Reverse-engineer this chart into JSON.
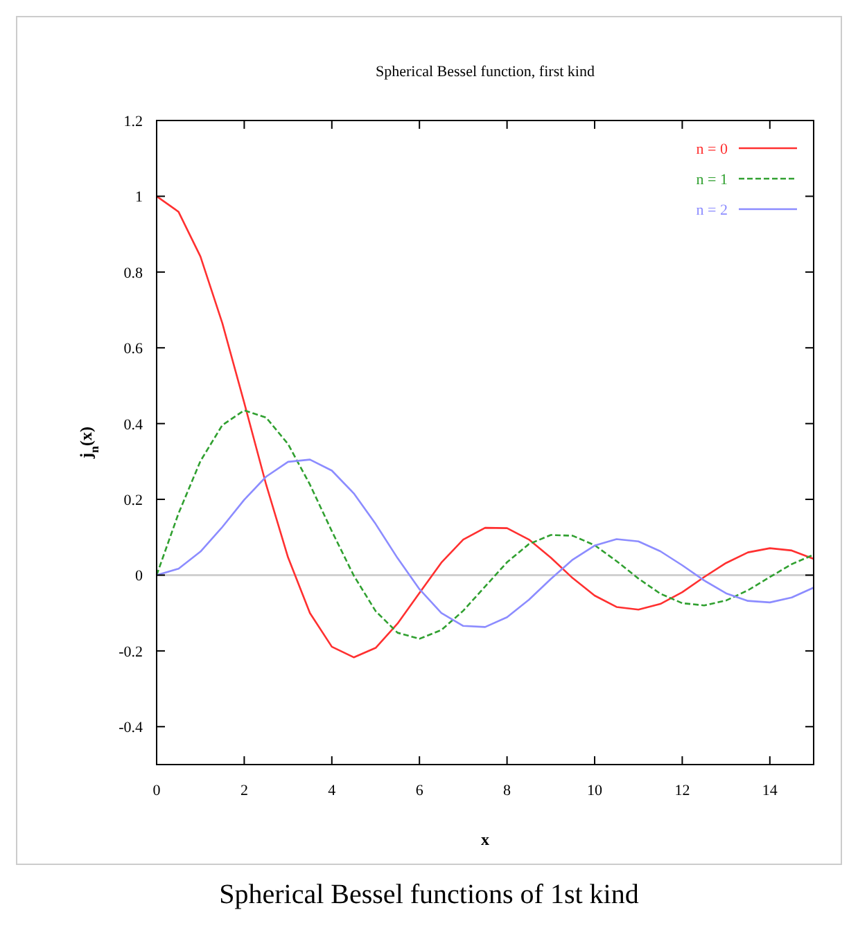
{
  "chart_data": {
    "type": "line",
    "title": "Spherical Bessel function, first kind",
    "xlabel": "x",
    "ylabel": "j$_{n}$(x)",
    "x": [
      0,
      0.5,
      1,
      1.5,
      2,
      2.5,
      3,
      3.5,
      4,
      4.5,
      5,
      5.5,
      6,
      6.5,
      7,
      7.5,
      8,
      8.5,
      9,
      9.5,
      10,
      10.5,
      11,
      11.5,
      12,
      12.5,
      13,
      13.5,
      14,
      14.5,
      15
    ],
    "series": [
      {
        "name": "n = 0",
        "color": "#ff3030",
        "line_style": "solid",
        "values": [
          1,
          0.959,
          0.841,
          0.665,
          0.455,
          0.239,
          0.047,
          -0.1,
          -0.189,
          -0.217,
          -0.192,
          -0.128,
          -0.047,
          0.033,
          0.094,
          0.125,
          0.124,
          0.094,
          0.046,
          -0.008,
          -0.054,
          -0.084,
          -0.091,
          -0.076,
          -0.045,
          -0.005,
          0.032,
          0.06,
          0.071,
          0.065,
          0.043
        ]
      },
      {
        "name": "n = 1",
        "color": "#30a030",
        "line_style": "dashed",
        "values": [
          0,
          0.163,
          0.301,
          0.396,
          0.435,
          0.416,
          0.346,
          0.239,
          0.116,
          -0.001,
          -0.095,
          -0.152,
          -0.168,
          -0.145,
          -0.094,
          -0.03,
          0.034,
          0.082,
          0.106,
          0.104,
          0.079,
          0.037,
          -0.009,
          -0.049,
          -0.074,
          -0.08,
          -0.067,
          -0.04,
          -0.005,
          0.029,
          0.054
        ]
      },
      {
        "name": "n = 2",
        "color": "#8c8cff",
        "line_style": "solid",
        "values": [
          0,
          0.017,
          0.062,
          0.127,
          0.199,
          0.26,
          0.299,
          0.305,
          0.276,
          0.216,
          0.135,
          0.045,
          -0.037,
          -0.1,
          -0.134,
          -0.137,
          -0.111,
          -0.065,
          -0.01,
          0.041,
          0.078,
          0.095,
          0.089,
          0.063,
          0.026,
          -0.014,
          -0.048,
          -0.068,
          -0.072,
          -0.059,
          -0.033
        ]
      }
    ],
    "xlim": [
      0,
      15
    ],
    "xticks": [
      0,
      2,
      4,
      6,
      8,
      10,
      12,
      14
    ],
    "ylim": [
      -0.5,
      1.2
    ],
    "yticks": [
      -0.4,
      -0.2,
      0,
      0.2,
      0.4,
      0.6,
      0.8,
      1,
      1.2
    ],
    "ref_lines": [
      {
        "axis": "y",
        "value": 0,
        "color": "#d0d0d0"
      }
    ],
    "legend": "top right",
    "grid": false,
    "annotations": [
      "Spherical Bessel functions of 1st kind"
    ]
  }
}
